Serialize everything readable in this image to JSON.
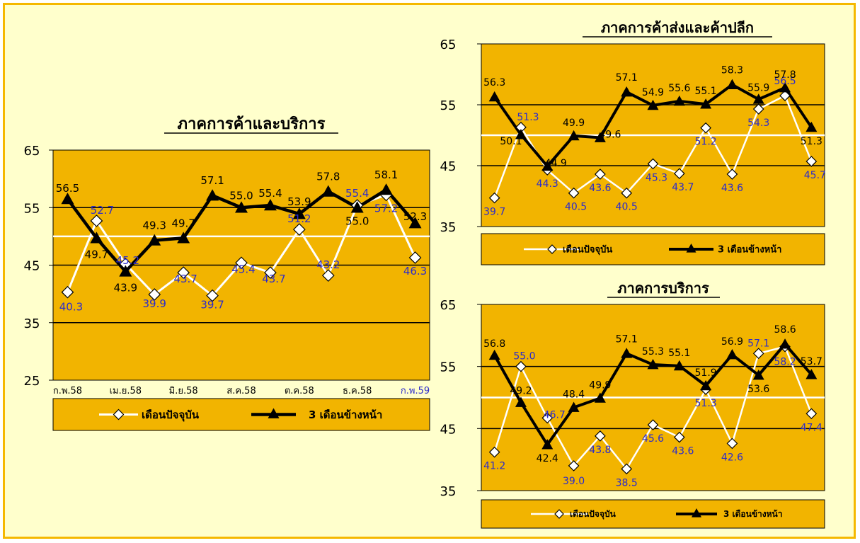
{
  "colors": {
    "frame_border": "#f5b800",
    "background": "#ffffcc",
    "plot_area": "#f2b400",
    "current_line": "#ffffff",
    "forecast_line": "#000000",
    "current_label": "#2b2bcc",
    "forecast_label": "#000000"
  },
  "chart_data": [
    {
      "type": "line",
      "title": "ภาคการค้าและบริการ",
      "ylim": [
        25,
        65
      ],
      "yticks": [
        "25",
        "35",
        "45",
        "55",
        "65"
      ],
      "xtick_labels": [
        "ก.พ.58",
        "เม.ย.58",
        "มิ.ย.58",
        "ส.ค.58",
        "ต.ค.58",
        "ธ.ค.58",
        "ก.พ.59"
      ],
      "categories_count": 13,
      "series": [
        {
          "name": "เดือนปัจจุบัน",
          "marker": "diamond",
          "values": [
            40.3,
            52.7,
            45.2,
            39.9,
            43.7,
            39.7,
            45.4,
            43.7,
            51.2,
            43.2,
            55.4,
            57.2,
            46.3
          ]
        },
        {
          "name": "3 เดือนข้างหน้า",
          "marker": "triangle",
          "values": [
            56.5,
            49.7,
            43.9,
            49.3,
            49.7,
            57.1,
            55.0,
            55.4,
            53.9,
            57.8,
            55.0,
            58.1,
            52.3
          ]
        }
      ],
      "reference_line": 50,
      "legend": "bottom"
    },
    {
      "type": "line",
      "title": "ภาคการค้าส่งและค้าปลีก",
      "ylim": [
        35,
        65
      ],
      "yticks": [
        "35",
        "45",
        "55",
        "65"
      ],
      "categories_count": 13,
      "series": [
        {
          "name": "เดือนปัจจุบัน",
          "marker": "diamond",
          "values": [
            39.7,
            51.3,
            44.3,
            40.5,
            43.6,
            40.5,
            45.3,
            43.7,
            51.2,
            43.6,
            54.3,
            56.5,
            45.7
          ]
        },
        {
          "name": "3 เดือนข้างหน้า",
          "marker": "triangle",
          "values": [
            56.3,
            50.1,
            44.9,
            49.9,
            49.6,
            57.1,
            54.9,
            55.6,
            55.1,
            58.3,
            55.9,
            57.8,
            51.3
          ]
        }
      ],
      "reference_line": 50,
      "legend": "bottom"
    },
    {
      "type": "line",
      "title": "ภาคการบริการ",
      "ylim": [
        35,
        65
      ],
      "yticks": [
        "35",
        "45",
        "55",
        "65"
      ],
      "categories_count": 13,
      "series": [
        {
          "name": "เดือนปัจจุบัน",
          "marker": "diamond",
          "values": [
            41.2,
            55.0,
            46.7,
            39.0,
            43.8,
            38.5,
            45.6,
            43.6,
            51.3,
            42.6,
            57.1,
            58.2,
            47.4
          ]
        },
        {
          "name": "3 เดือนข้างหน้า",
          "marker": "triangle",
          "values": [
            56.8,
            49.2,
            42.4,
            48.4,
            49.9,
            57.1,
            55.3,
            55.1,
            51.9,
            56.9,
            53.6,
            58.6,
            53.7
          ]
        }
      ],
      "reference_line": 50,
      "legend": "bottom"
    }
  ]
}
